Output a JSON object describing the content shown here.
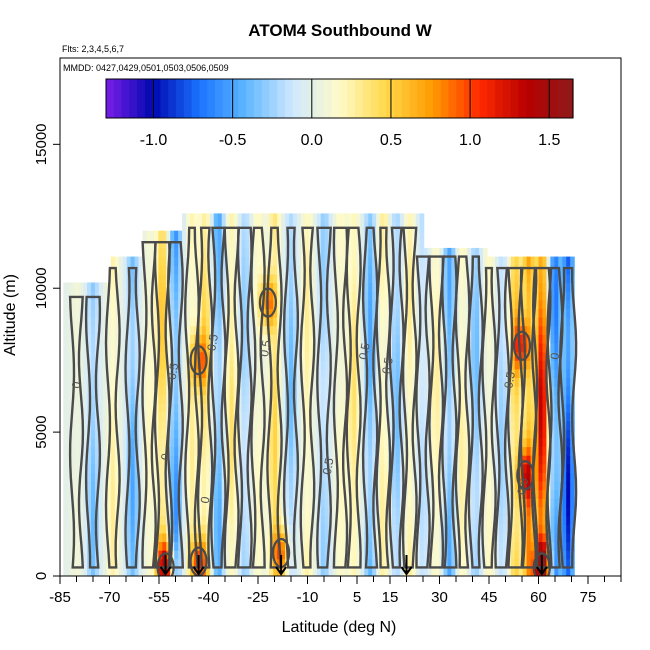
{
  "chart_data": {
    "type": "heatmap",
    "title": "ATOM4 Southbound W",
    "annotations": [
      "Flts: 2,3,4,5,6,7",
      "MMDD: 0427,0429,0501,0503,0506,0509"
    ],
    "xlabel": "Latitude (deg N)",
    "ylabel": "Altitude (m)",
    "xlim": [
      -85,
      85
    ],
    "ylim": [
      0,
      18000
    ],
    "x_ticks": [
      -85,
      -70,
      -55,
      -40,
      -25,
      -10,
      5,
      15,
      30,
      45,
      60,
      75
    ],
    "x_tick_labels": [
      "-85",
      "-70",
      "-55",
      "-40",
      "-25",
      "-10",
      "5",
      "15",
      "30",
      "45",
      "60",
      "75"
    ],
    "y_ticks": [
      0,
      5000,
      10000,
      15000
    ],
    "y_tick_labels": [
      "0",
      "5000",
      "10000",
      "15000"
    ],
    "colorbar": {
      "range": [
        -1.3,
        1.65
      ],
      "ticks": [
        -1.0,
        -0.5,
        0.0,
        0.5,
        1.0,
        1.5
      ],
      "tick_labels": [
        "-1.0",
        "-0.5",
        "0.0",
        "0.5",
        "1.0",
        "1.5"
      ],
      "colors": [
        "#7a1fe8",
        "#0008b0",
        "#1a73ff",
        "#5fb8ff",
        "#cfe8ff",
        "#fffbc8",
        "#ffd84a",
        "#ff9a00",
        "#ff2a00",
        "#b80000",
        "#8e1a1a"
      ]
    },
    "contour_labels": [
      "0",
      "0",
      "0",
      "0.5",
      "0.5",
      "0.5",
      "0.5",
      "0.5",
      "0.5",
      "0.5",
      "0.5",
      "0"
    ],
    "grid": false,
    "arrow_markers_latitude": [
      -53,
      -43,
      -18,
      20,
      61
    ],
    "data_extent": {
      "lat": [
        -84,
        71
      ],
      "alt_top_by_region": [
        {
          "lat": [
            -84,
            -70
          ],
          "alt_top": 10000
        },
        {
          "lat": [
            -70,
            -60
          ],
          "alt_top": 11000
        },
        {
          "lat": [
            -60,
            -48
          ],
          "alt_top": 11900
        },
        {
          "lat": [
            -48,
            25
          ],
          "alt_top": 12400
        },
        {
          "lat": [
            25,
            44
          ],
          "alt_top": 11400
        },
        {
          "lat": [
            44,
            71
          ],
          "alt_top": 11000
        }
      ]
    },
    "vertical_structures": [
      {
        "lat": -80,
        "w": 0.1
      },
      {
        "lat": -75,
        "w": -0.4
      },
      {
        "lat": -69,
        "w": 0.3
      },
      {
        "lat": -63,
        "w": -0.5
      },
      {
        "lat": -58,
        "w": 0.2
      },
      {
        "lat": -54,
        "w": 0.6
      },
      {
        "lat": -50,
        "w": -0.6
      },
      {
        "lat": -45,
        "w": 0.3
      },
      {
        "lat": -41,
        "w": 0.5
      },
      {
        "lat": -37,
        "w": -0.5
      },
      {
        "lat": -33,
        "w": 0.4
      },
      {
        "lat": -29,
        "w": -0.3
      },
      {
        "lat": -25,
        "w": 0.2
      },
      {
        "lat": -20,
        "w": 0.5
      },
      {
        "lat": -15,
        "w": -0.4
      },
      {
        "lat": -10,
        "w": 0.3
      },
      {
        "lat": -5,
        "w": -0.3
      },
      {
        "lat": 0,
        "w": 0.2
      },
      {
        "lat": 4,
        "w": 0.4
      },
      {
        "lat": 9,
        "w": -0.5
      },
      {
        "lat": 13,
        "w": 0.3
      },
      {
        "lat": 17,
        "w": -0.4
      },
      {
        "lat": 21,
        "w": 0.3
      },
      {
        "lat": 25,
        "w": -0.2
      },
      {
        "lat": 29,
        "w": 0.3
      },
      {
        "lat": 33,
        "w": -0.5
      },
      {
        "lat": 37,
        "w": 0.3
      },
      {
        "lat": 41,
        "w": -0.4
      },
      {
        "lat": 45,
        "w": 0.2
      },
      {
        "lat": 49,
        "w": -0.3
      },
      {
        "lat": 53,
        "w": 0.6
      },
      {
        "lat": 57,
        "w": 0.8
      },
      {
        "lat": 61,
        "w": 1.4
      },
      {
        "lat": 65,
        "w": -0.7
      },
      {
        "lat": 69,
        "w": -1.0
      }
    ],
    "hotspots": [
      {
        "lat": -53,
        "alt": 300,
        "w": 1.2
      },
      {
        "lat": -43,
        "alt": 500,
        "w": 0.9
      },
      {
        "lat": -18,
        "alt": 800,
        "w": 0.9
      },
      {
        "lat": 56,
        "alt": 3500,
        "w": 0.8
      },
      {
        "lat": 61,
        "alt": 300,
        "w": 1.5
      },
      {
        "lat": 55,
        "alt": 8000,
        "w": 0.8
      },
      {
        "lat": -43,
        "alt": 7500,
        "w": 0.7
      },
      {
        "lat": -22,
        "alt": 9500,
        "w": 0.8
      }
    ]
  }
}
